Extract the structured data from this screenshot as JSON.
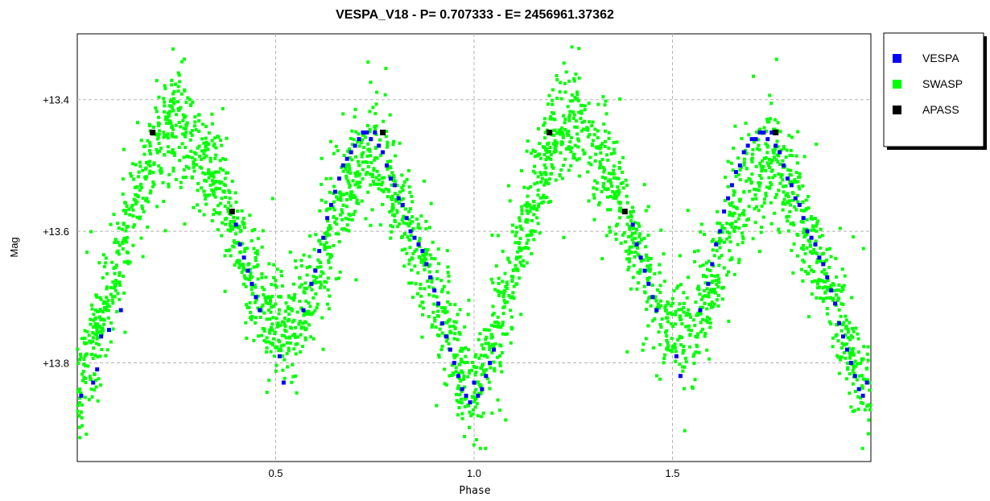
{
  "chart_data": {
    "type": "scatter",
    "title": "VESPA_V18  -  P= 0.707333  -  E= 2456961.37362",
    "xlabel": "Phase",
    "ylabel": "Mag",
    "xlim": [
      0.0,
      2.0
    ],
    "ylim": [
      13.3,
      13.95
    ],
    "y_inverted": true,
    "grid": true,
    "legend_position": "top-right outside",
    "x_ticks": [
      {
        "value": 0.5,
        "label": "0.5"
      },
      {
        "value": 1.0,
        "label": "1.0"
      },
      {
        "value": 1.5,
        "label": "1.5"
      }
    ],
    "y_ticks": [
      {
        "value": 13.4,
        "label": "+13.4"
      },
      {
        "value": 13.6,
        "label": "+13.6"
      },
      {
        "value": 13.8,
        "label": "+13.8"
      }
    ],
    "series": [
      {
        "name": "VESPA",
        "color": "#0000ff",
        "points": [
          [
            0.01,
            13.85
          ],
          [
            0.04,
            13.83
          ],
          [
            0.05,
            13.81
          ],
          [
            0.06,
            13.76
          ],
          [
            0.08,
            13.75
          ],
          [
            0.11,
            13.72
          ],
          [
            0.4,
            13.59
          ],
          [
            0.41,
            13.62
          ],
          [
            0.42,
            13.64
          ],
          [
            0.43,
            13.66
          ],
          [
            0.44,
            13.68
          ],
          [
            0.45,
            13.7
          ],
          [
            0.46,
            13.72
          ],
          [
            0.51,
            13.79
          ],
          [
            0.52,
            13.83
          ],
          [
            0.57,
            13.72
          ],
          [
            0.59,
            13.68
          ],
          [
            0.6,
            13.66
          ],
          [
            0.61,
            13.63
          ],
          [
            0.62,
            13.61
          ],
          [
            0.63,
            13.58
          ],
          [
            0.64,
            13.56
          ],
          [
            0.65,
            13.54
          ],
          [
            0.66,
            13.52
          ],
          [
            0.67,
            13.5
          ],
          [
            0.68,
            13.49
          ],
          [
            0.69,
            13.48
          ],
          [
            0.7,
            13.47
          ],
          [
            0.71,
            13.46
          ],
          [
            0.72,
            13.45
          ],
          [
            0.73,
            13.45
          ],
          [
            0.74,
            13.46
          ],
          [
            0.75,
            13.45
          ],
          [
            0.76,
            13.47
          ],
          [
            0.77,
            13.48
          ],
          [
            0.78,
            13.5
          ],
          [
            0.79,
            13.52
          ],
          [
            0.8,
            13.53
          ],
          [
            0.81,
            13.55
          ],
          [
            0.82,
            13.56
          ],
          [
            0.83,
            13.58
          ],
          [
            0.84,
            13.6
          ],
          [
            0.85,
            13.61
          ],
          [
            0.86,
            13.62
          ],
          [
            0.87,
            13.63
          ],
          [
            0.88,
            13.65
          ],
          [
            0.89,
            13.67
          ],
          [
            0.9,
            13.69
          ],
          [
            0.91,
            13.71
          ],
          [
            0.92,
            13.74
          ],
          [
            0.93,
            13.76
          ],
          [
            0.94,
            13.78
          ],
          [
            0.95,
            13.8
          ],
          [
            0.96,
            13.82
          ],
          [
            0.97,
            13.84
          ],
          [
            0.98,
            13.85
          ],
          [
            0.99,
            13.86
          ],
          [
            1.0,
            13.83
          ],
          [
            1.01,
            13.85
          ],
          [
            1.02,
            13.84
          ],
          [
            1.03,
            13.82
          ],
          [
            1.04,
            13.8
          ],
          [
            1.05,
            13.78
          ],
          [
            1.4,
            13.59
          ],
          [
            1.41,
            13.62
          ],
          [
            1.42,
            13.64
          ],
          [
            1.43,
            13.66
          ],
          [
            1.44,
            13.68
          ],
          [
            1.45,
            13.7
          ],
          [
            1.46,
            13.72
          ],
          [
            1.51,
            13.79
          ],
          [
            1.52,
            13.82
          ],
          [
            1.57,
            13.72
          ],
          [
            1.59,
            13.68
          ],
          [
            1.6,
            13.65
          ],
          [
            1.61,
            13.62
          ],
          [
            1.62,
            13.6
          ],
          [
            1.63,
            13.57
          ],
          [
            1.64,
            13.55
          ],
          [
            1.65,
            13.53
          ],
          [
            1.66,
            13.51
          ],
          [
            1.67,
            13.5
          ],
          [
            1.68,
            13.48
          ],
          [
            1.69,
            13.47
          ],
          [
            1.7,
            13.46
          ],
          [
            1.71,
            13.46
          ],
          [
            1.72,
            13.45
          ],
          [
            1.73,
            13.45
          ],
          [
            1.74,
            13.46
          ],
          [
            1.75,
            13.45
          ],
          [
            1.76,
            13.47
          ],
          [
            1.77,
            13.48
          ],
          [
            1.78,
            13.5
          ],
          [
            1.79,
            13.52
          ],
          [
            1.8,
            13.53
          ],
          [
            1.81,
            13.55
          ],
          [
            1.82,
            13.56
          ],
          [
            1.83,
            13.58
          ],
          [
            1.84,
            13.6
          ],
          [
            1.85,
            13.61
          ],
          [
            1.86,
            13.62
          ],
          [
            1.87,
            13.64
          ],
          [
            1.88,
            13.65
          ],
          [
            1.89,
            13.67
          ],
          [
            1.9,
            13.69
          ],
          [
            1.91,
            13.71
          ],
          [
            1.92,
            13.74
          ],
          [
            1.93,
            13.76
          ],
          [
            1.94,
            13.78
          ],
          [
            1.95,
            13.8
          ],
          [
            1.96,
            13.82
          ],
          [
            1.97,
            13.84
          ],
          [
            1.98,
            13.85
          ],
          [
            1.99,
            13.83
          ]
        ]
      },
      {
        "name": "SWASP",
        "color": "#00ff00",
        "curve": [
          [
            0.0,
            13.84
          ],
          [
            0.05,
            13.76
          ],
          [
            0.1,
            13.66
          ],
          [
            0.15,
            13.54
          ],
          [
            0.2,
            13.46
          ],
          [
            0.25,
            13.44
          ],
          [
            0.3,
            13.48
          ],
          [
            0.35,
            13.52
          ],
          [
            0.4,
            13.61
          ],
          [
            0.45,
            13.69
          ],
          [
            0.5,
            13.74
          ],
          [
            0.55,
            13.74
          ],
          [
            0.6,
            13.68
          ],
          [
            0.65,
            13.58
          ],
          [
            0.7,
            13.51
          ],
          [
            0.75,
            13.48
          ],
          [
            0.8,
            13.54
          ],
          [
            0.85,
            13.62
          ],
          [
            0.9,
            13.7
          ],
          [
            0.95,
            13.78
          ],
          [
            1.0,
            13.85
          ]
        ],
        "scatter_mag": 0.04,
        "outlier_mag": 0.085,
        "point_count": 3000
      },
      {
        "name": "APASS",
        "color": "#000000",
        "points": [
          [
            0.19,
            13.45
          ],
          [
            0.39,
            13.57
          ],
          [
            0.77,
            13.45
          ],
          [
            1.19,
            13.45
          ],
          [
            1.38,
            13.57
          ],
          [
            1.76,
            13.45
          ]
        ]
      }
    ]
  }
}
